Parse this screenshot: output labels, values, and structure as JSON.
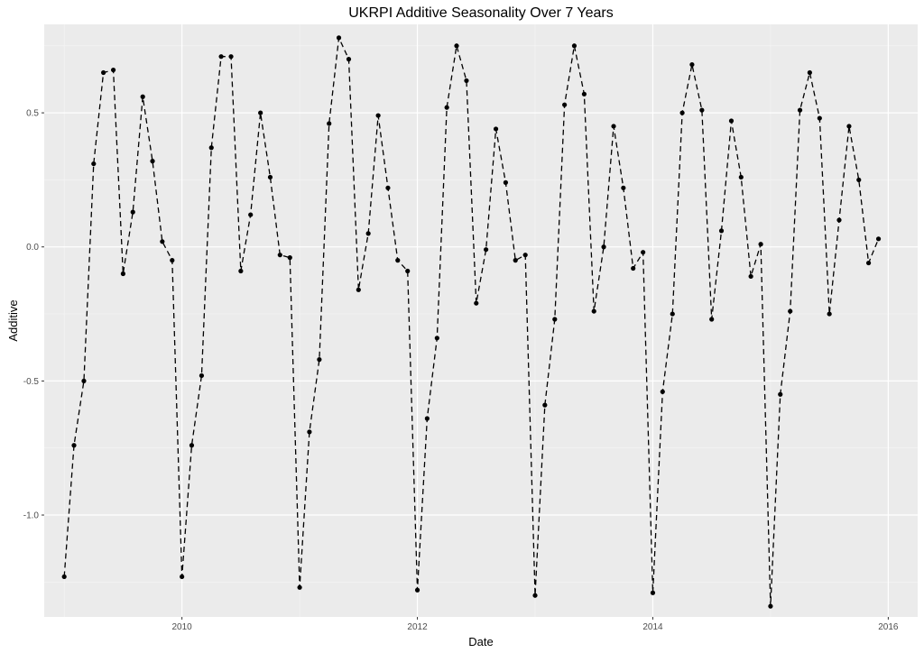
{
  "chart_data": {
    "type": "line",
    "title": "UKRPI Additive Seasonality Over 7 Years",
    "xlabel": "Date",
    "ylabel": "Additive",
    "x_ticks": [
      "2010",
      "2012",
      "2014",
      "2016"
    ],
    "y_ticks": [
      "-1.0",
      "-0.5",
      "0.0",
      "0.5"
    ],
    "xlim": [
      2008.83,
      2016.25
    ],
    "ylim": [
      -1.38,
      0.83
    ],
    "grid": true,
    "background": "#EBEBEB",
    "line_color": "#000000",
    "line_style": "dashed",
    "markers": true,
    "series": [
      {
        "x": [
          2009.0,
          2009.083,
          2009.167,
          2009.25,
          2009.333,
          2009.417,
          2009.5,
          2009.583,
          2009.667,
          2009.75,
          2009.833,
          2009.917,
          2010.0,
          2010.083,
          2010.167,
          2010.25,
          2010.333,
          2010.417,
          2010.5,
          2010.583,
          2010.667,
          2010.75,
          2010.833,
          2010.917,
          2011.0,
          2011.083,
          2011.167,
          2011.25,
          2011.333,
          2011.417,
          2011.5,
          2011.583,
          2011.667,
          2011.75,
          2011.833,
          2011.917,
          2012.0,
          2012.083,
          2012.167,
          2012.25,
          2012.333,
          2012.417,
          2012.5,
          2012.583,
          2012.667,
          2012.75,
          2012.833,
          2012.917,
          2013.0,
          2013.083,
          2013.167,
          2013.25,
          2013.333,
          2013.417,
          2013.5,
          2013.583,
          2013.667,
          2013.75,
          2013.833,
          2013.917,
          2014.0,
          2014.083,
          2014.167,
          2014.25,
          2014.333,
          2014.417,
          2014.5,
          2014.583,
          2014.667,
          2014.75,
          2014.833,
          2014.917,
          2015.0,
          2015.083,
          2015.167,
          2015.25,
          2015.333,
          2015.417,
          2015.5,
          2015.583,
          2015.667,
          2015.75,
          2015.833,
          2015.917
        ],
        "y": [
          -1.23,
          -0.74,
          -0.5,
          0.31,
          0.65,
          0.66,
          -0.1,
          0.13,
          0.56,
          0.32,
          0.02,
          -0.05,
          -1.23,
          -0.74,
          -0.48,
          0.37,
          0.71,
          0.71,
          -0.09,
          0.12,
          0.5,
          0.26,
          -0.03,
          -0.04,
          -1.27,
          -0.69,
          -0.42,
          0.46,
          0.78,
          0.7,
          -0.16,
          0.05,
          0.49,
          0.22,
          -0.05,
          -0.09,
          -1.28,
          -0.64,
          -0.34,
          0.52,
          0.75,
          0.62,
          -0.21,
          -0.01,
          0.44,
          0.24,
          -0.05,
          -0.03,
          -1.3,
          -0.59,
          -0.27,
          0.53,
          0.75,
          0.57,
          -0.24,
          0.0,
          0.45,
          0.22,
          -0.08,
          -0.02,
          -1.29,
          -0.54,
          -0.25,
          0.5,
          0.68,
          0.51,
          -0.27,
          0.06,
          0.47,
          0.26,
          -0.11,
          0.01,
          -1.34,
          -0.55,
          -0.24,
          0.51,
          0.65,
          0.48,
          -0.25,
          0.1,
          0.45,
          0.25,
          -0.06,
          0.03
        ]
      }
    ]
  }
}
